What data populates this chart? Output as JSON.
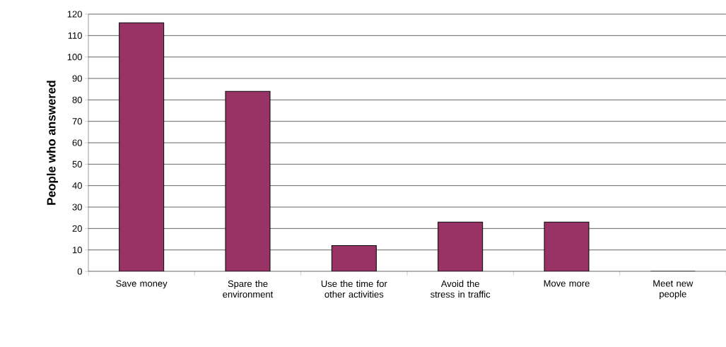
{
  "chart_data": {
    "type": "bar",
    "ylabel": "People who answered",
    "categories": [
      "Save money",
      "Spare the environment",
      "Use the time for other activities",
      "Avoid the stress in traffic",
      "Move more",
      "Meet new people"
    ],
    "values": [
      116,
      84,
      12,
      23,
      23,
      0
    ],
    "color": "#993366",
    "ylim": [
      0,
      120
    ],
    "yticks": [
      0,
      10,
      20,
      30,
      40,
      50,
      60,
      70,
      80,
      90,
      100,
      110,
      120
    ],
    "grid": "y"
  }
}
